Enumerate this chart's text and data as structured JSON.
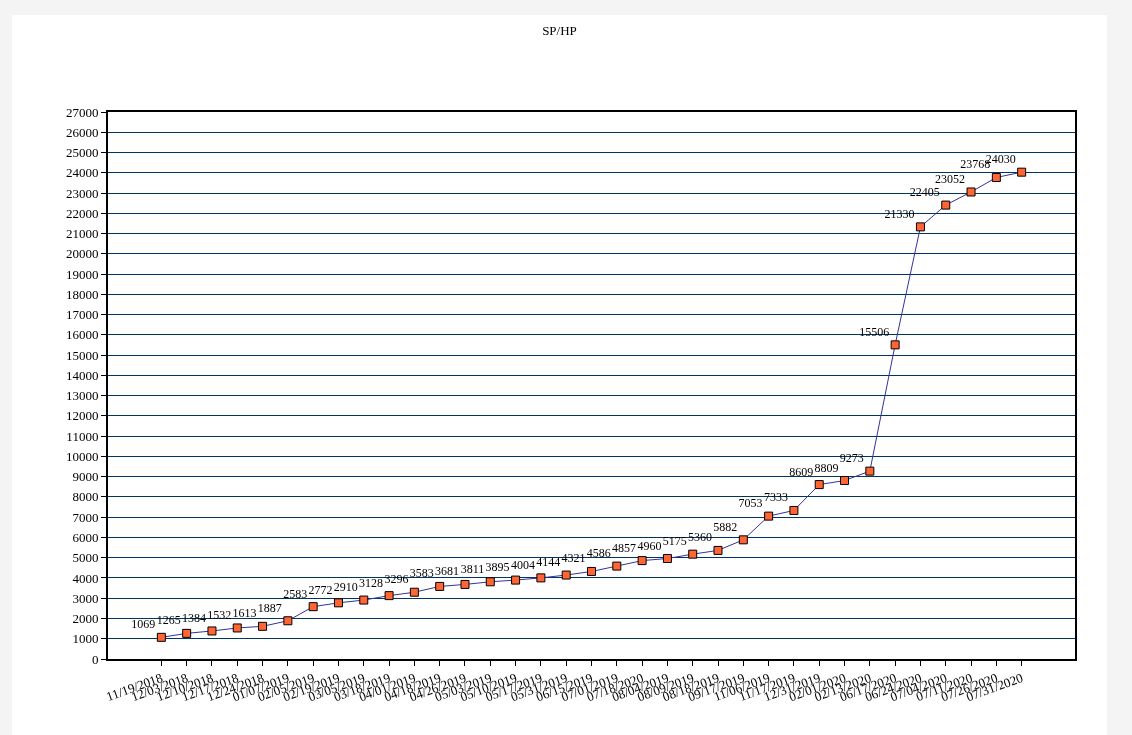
{
  "chart_data": {
    "type": "line",
    "title": "SP/HP",
    "categories": [
      "11/19/2018",
      "12/03/2018",
      "12/10/2018",
      "12/17/2018",
      "12/24/2018",
      "01/07/2019",
      "02/05/2019",
      "02/19/2019",
      "03/05/2019",
      "03/18/2019",
      "04/01/2019",
      "04/18/2019",
      "04/26/2019",
      "05/03/2019",
      "05/10/2019",
      "05/17/2019",
      "05/31/2019",
      "06/15/2019",
      "07/01/2019",
      "07/18/2020",
      "08/04/2019",
      "08/09/2019",
      "08/18/2019",
      "09/17/2019",
      "11/06/2019",
      "11/17/2019",
      "12/31/2019",
      "02/01/2020",
      "02/13/2020",
      "06/17/2020",
      "06/24/2020",
      "07/04/2020",
      "07/11/2020",
      "07/26/2020",
      "07/31/2020"
    ],
    "series": [
      {
        "color": "#333399",
        "colors": [
          "#ff6633",
          "#ff6633",
          "#ff6633",
          "#ff6633",
          "#ff6633",
          "#ff6633",
          "#ff6633",
          "#ff6633",
          "#ff6633",
          "#ff6633",
          "#ff6633",
          "#ff6633",
          "#ff6633",
          "#ff6633",
          "#ff6633",
          "#ff6633",
          "#ff6633",
          "#ff6633",
          "#ff6633",
          "#ff6633",
          "#ff6633",
          "#ff6633",
          "#ff6633",
          "#ff6633",
          "#ff6633",
          "#ff6633",
          "#ff6633",
          "#ff6633",
          "#ff6633",
          "#ff6633",
          "#ff6633",
          "#ff6633",
          "#ff6633",
          "#ff6633",
          "#ff6633"
        ],
        "values": [
          1069,
          1265,
          1384,
          1532,
          1613,
          1887,
          2583,
          2772,
          2910,
          3128,
          3296,
          3583,
          3681,
          3811,
          3895,
          4004,
          4144,
          4321,
          4586,
          4857,
          4960,
          5175,
          5360,
          5882,
          7053,
          7333,
          8609,
          8809,
          9273,
          15506,
          21330,
          22405,
          23052,
          23768,
          24030
        ]
      }
    ],
    "ylim": [
      0,
      27000
    ],
    "yticks": [
      0,
      1000,
      2000,
      3000,
      4000,
      5000,
      6000,
      7000,
      8000,
      9000,
      10000,
      11000,
      12000,
      13000,
      14000,
      15000,
      16000,
      17000,
      18000,
      19000,
      20000,
      21000,
      22000,
      23000,
      24000,
      25000,
      26000,
      27000
    ],
    "grid": "y",
    "marker": "square",
    "line_style": "solid",
    "data_labels": true
  }
}
